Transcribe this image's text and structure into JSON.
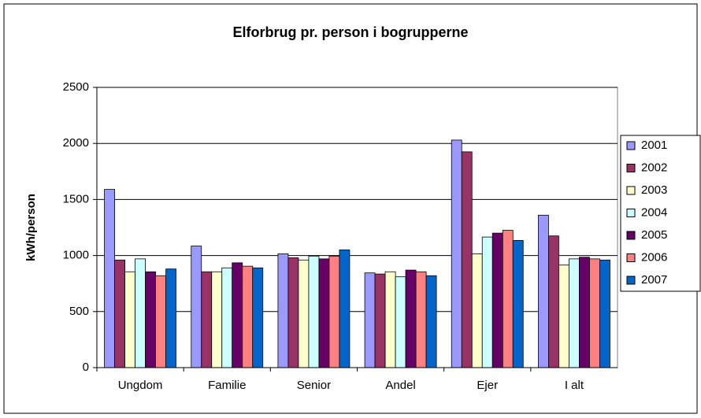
{
  "chart_data": {
    "type": "bar",
    "title": "Elforbrug pr. person i bogrupperne",
    "ylabel": "kWh/person",
    "categories": [
      "Ungdom",
      "Familie",
      "Senior",
      "Andel",
      "Ejer",
      "I alt"
    ],
    "series": [
      {
        "name": "2001",
        "color": "#9999ff",
        "values": [
          1590,
          1085,
          1015,
          845,
          2030,
          1360
        ]
      },
      {
        "name": "2002",
        "color": "#993366",
        "values": [
          960,
          855,
          980,
          835,
          1925,
          1175
        ]
      },
      {
        "name": "2003",
        "color": "#ffffcc",
        "values": [
          855,
          855,
          960,
          855,
          1015,
          915
        ]
      },
      {
        "name": "2004",
        "color": "#ccffff",
        "values": [
          970,
          890,
          995,
          810,
          1165,
          970
        ]
      },
      {
        "name": "2005",
        "color": "#660066",
        "values": [
          855,
          935,
          970,
          870,
          1200,
          985
        ]
      },
      {
        "name": "2006",
        "color": "#ff8080",
        "values": [
          820,
          905,
          995,
          855,
          1225,
          970
        ]
      },
      {
        "name": "2007",
        "color": "#0066cc",
        "values": [
          880,
          890,
          1050,
          820,
          1135,
          960
        ]
      }
    ],
    "ylim": [
      0,
      2500
    ],
    "yticks": [
      0,
      500,
      1000,
      1500,
      2000,
      2500
    ],
    "grid": true,
    "legend": "right"
  }
}
